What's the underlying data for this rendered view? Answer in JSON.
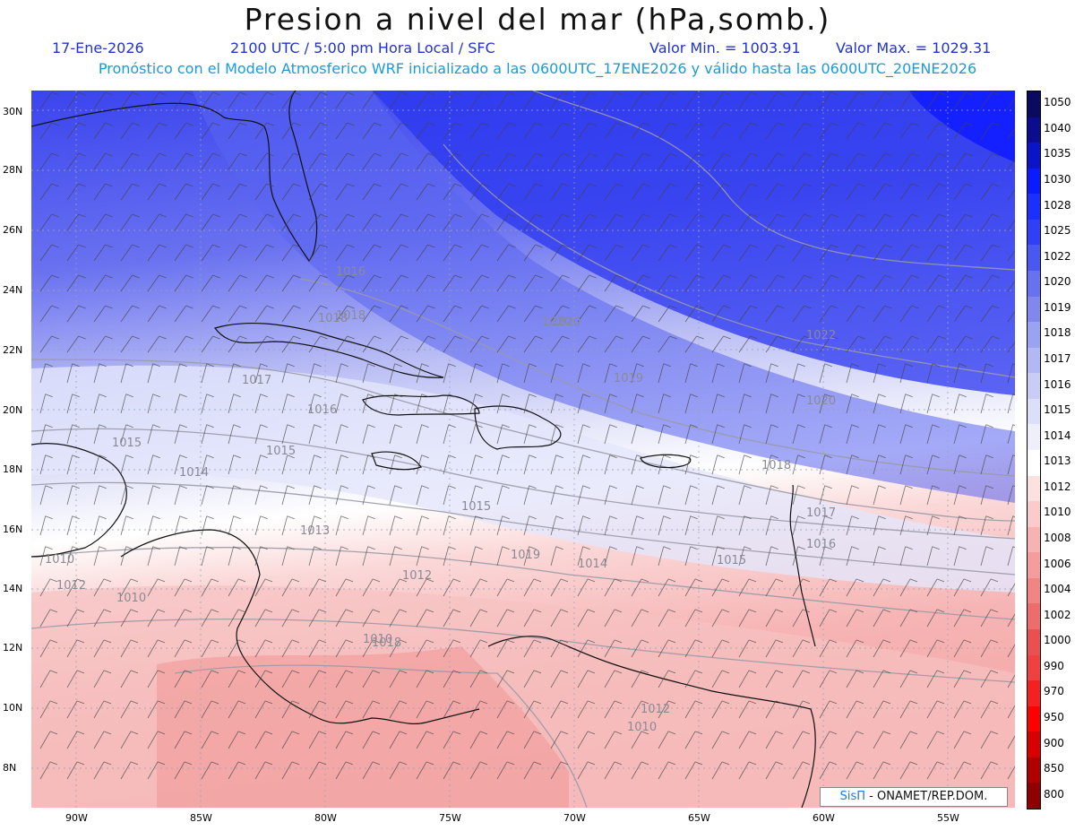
{
  "title": "Presion a nivel del mar (hPa,somb.)",
  "header": {
    "date": "17-Ene-2026",
    "time": "2100 UTC / 5:00 pm Hora Local / SFC",
    "min": "Valor Min. = 1003.91",
    "max": "Valor Max. = 1029.31",
    "forecast": "Pronóstico con el Modelo Atmosferico WRF inicializado a las 0600UTC_17ENE2026 y válido hasta las  0600UTC_20ENE2026"
  },
  "map": {
    "lat_labels": [
      "30N",
      "28N",
      "26N",
      "24N",
      "22N",
      "20N",
      "18N",
      "16N",
      "14N",
      "12N",
      "10N",
      "8N"
    ],
    "lon_labels": [
      "90W",
      "85W",
      "80W",
      "75W",
      "70W",
      "65W",
      "60W",
      "55W"
    ],
    "contour_labels": [
      "1020",
      "1018",
      "1020",
      "1022",
      "1019",
      "1020",
      "1017",
      "1016",
      "1015",
      "1015",
      "1014",
      "1013",
      "1012",
      "1015",
      "1014",
      "1015",
      "1016",
      "1017",
      "1018",
      "1010",
      "1012",
      "1010",
      "1012",
      "1010",
      "1016",
      "1010",
      "1019",
      "1018",
      "1018"
    ],
    "colors": {
      "high": "#1a2cf0",
      "mid": "#9aa3f2",
      "neutral": "#ffffff",
      "low": "#f5a3a3"
    }
  },
  "colorbar": {
    "levels": [
      "1050",
      "1040",
      "1035",
      "1030",
      "1028",
      "1025",
      "1022",
      "1020",
      "1019",
      "1018",
      "1017",
      "1016",
      "1015",
      "1014",
      "1013",
      "1012",
      "1010",
      "1008",
      "1006",
      "1004",
      "1002",
      "1000",
      "990",
      "970",
      "950",
      "900",
      "850",
      "800"
    ],
    "colors": [
      "#0a0a60",
      "#0c0c90",
      "#0a14c8",
      "#0a1cff",
      "#1a30ff",
      "#3040f8",
      "#4a58f2",
      "#6672f0",
      "#8088f0",
      "#9aa2f2",
      "#b2b8f4",
      "#c8ccf6",
      "#dcdff8",
      "#eeeffb",
      "#ffffff",
      "#fde0e0",
      "#fbcaca",
      "#f8b2b2",
      "#f59c9c",
      "#f28484",
      "#ee6c6c",
      "#ea5050",
      "#f04040",
      "#f52020",
      "#ff0000",
      "#d80000",
      "#b00000",
      "#900000"
    ]
  },
  "credit": {
    "brand": "SisΠ",
    "text": " - ONAMET/REP.DOM."
  }
}
